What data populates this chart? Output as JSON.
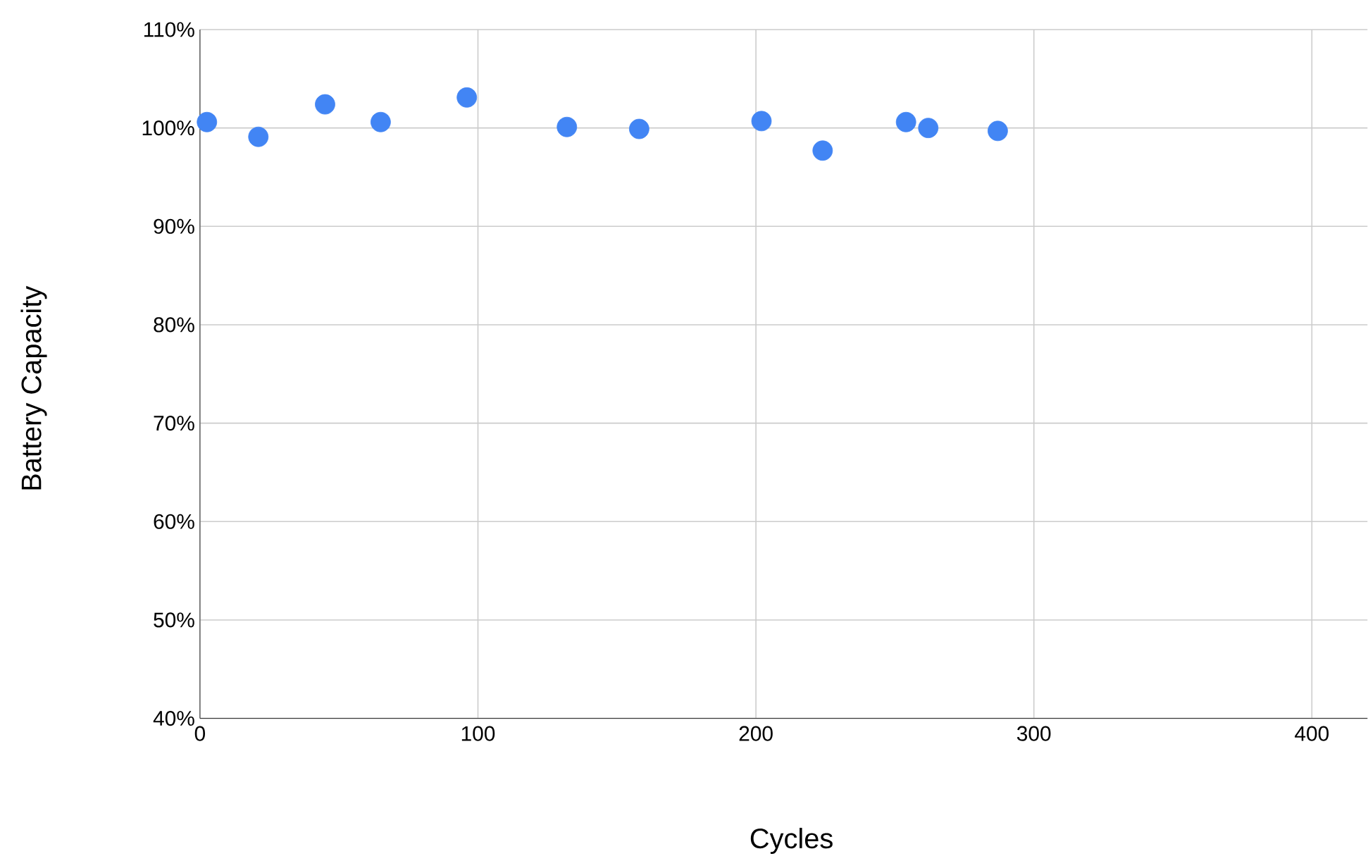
{
  "chart_data": {
    "type": "scatter",
    "xlabel": "Cycles",
    "ylabel": "Battery Capacity",
    "x": [
      2.5,
      21,
      45,
      65,
      96,
      132,
      158,
      202,
      224,
      254,
      262,
      287
    ],
    "series": [
      {
        "color": "#4285f4",
        "values": [
          100.6,
          99.1,
          102.4,
          100.6,
          103.1,
          100.1,
          99.9,
          100.7,
          97.7,
          100.6,
          100.0,
          99.7
        ]
      }
    ],
    "xlim": [
      0,
      420
    ],
    "xticks": [
      0,
      100,
      200,
      300,
      400
    ],
    "ylim": [
      40,
      110
    ],
    "yticks": [
      {
        "value": 40,
        "label": "40%"
      },
      {
        "value": 50,
        "label": "50%"
      },
      {
        "value": 60,
        "label": "60%"
      },
      {
        "value": 70,
        "label": "70%"
      },
      {
        "value": 80,
        "label": "80%"
      },
      {
        "value": 90,
        "label": "90%"
      },
      {
        "value": 100,
        "label": "100%"
      },
      {
        "value": 110,
        "label": "110%"
      }
    ],
    "grid": true,
    "marker": "circle"
  }
}
